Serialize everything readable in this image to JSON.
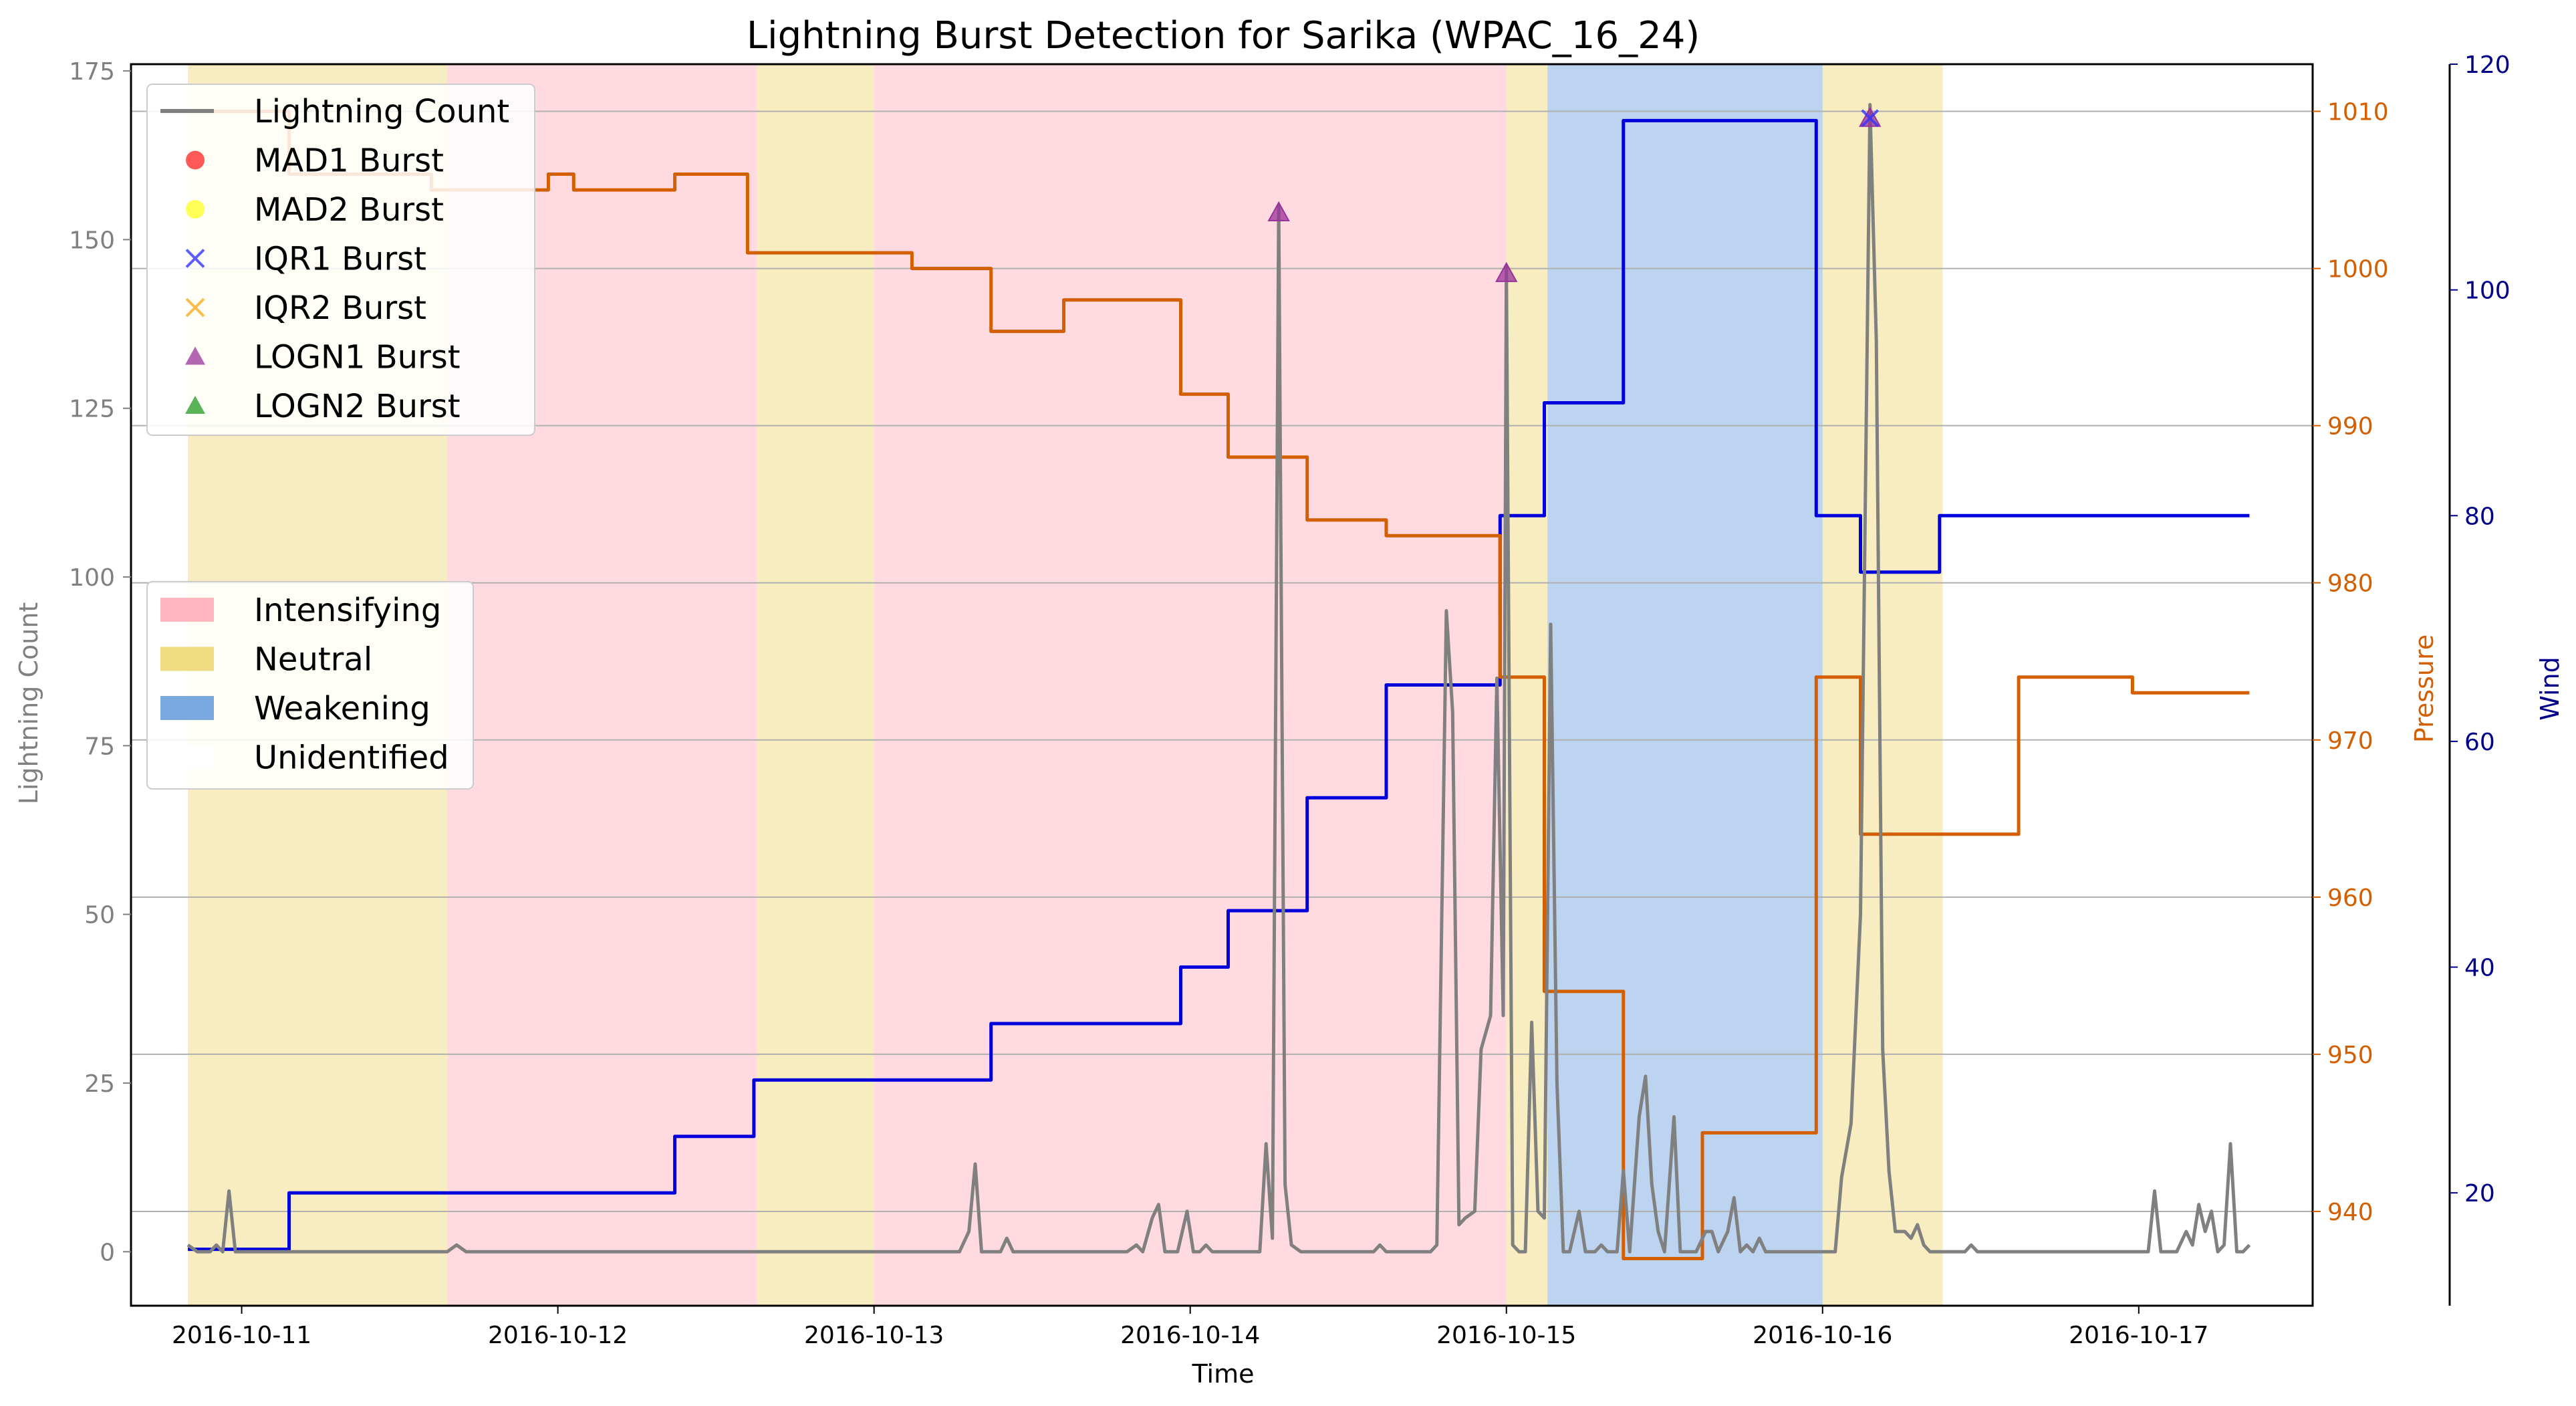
{
  "chart_data": {
    "type": "line",
    "title": "Lightning Burst Detection for Sarika (WPAC_16_24)",
    "xlabel": "Time",
    "ylabel_left": "Lightning Count",
    "ylabel_pressure": "Pressure",
    "ylabel_wind": "Wind",
    "x_ticks": [
      "2016-10-11",
      "2016-10-12",
      "2016-10-13",
      "2016-10-14",
      "2016-10-15",
      "2016-10-16",
      "2016-10-17"
    ],
    "y_left_ticks": [
      "0",
      "25",
      "50",
      "75",
      "100",
      "125",
      "150",
      "175"
    ],
    "y_pressure_ticks": [
      "940",
      "950",
      "960",
      "970",
      "980",
      "990",
      "1000",
      "1010"
    ],
    "y_wind_ticks": [
      "20",
      "40",
      "60",
      "80",
      "100",
      "120"
    ],
    "x_range_days": [
      10.65,
      17.55
    ],
    "x_origin_date": "2016-10-10",
    "y_left_range": [
      -8,
      176
    ],
    "y_pressure_range": [
      934,
      1013
    ],
    "y_wind_range": [
      10,
      120
    ],
    "grid": "horizontal",
    "colors": {
      "lightning": "#808080",
      "pressure": "#d35f00",
      "wind": "#0000dd",
      "intensifying": "#ffb6c1",
      "neutral": "#f0dc82",
      "weakening": "#7aa9df",
      "mad1": "#ff2222",
      "mad2": "#ffff22",
      "iqr1": "#3333ff",
      "iqr2": "#ffaa22",
      "logn1": "#993399",
      "logn2": "#229922"
    },
    "phases": [
      {
        "label": "Neutral",
        "start": 10.83,
        "end": 11.65
      },
      {
        "label": "Intensifying",
        "start": 11.65,
        "end": 12.63
      },
      {
        "label": "Neutral",
        "start": 12.63,
        "end": 13.0
      },
      {
        "label": "Intensifying",
        "start": 13.0,
        "end": 15.0
      },
      {
        "label": "Neutral",
        "start": 15.0,
        "end": 15.13
      },
      {
        "label": "Weakening",
        "start": 15.13,
        "end": 16.0
      },
      {
        "label": "Neutral",
        "start": 16.0,
        "end": 16.38
      }
    ],
    "series": [
      {
        "name": "Lightning Count",
        "axis": "left",
        "points": [
          [
            10.83,
            1
          ],
          [
            10.86,
            0
          ],
          [
            10.9,
            0
          ],
          [
            10.92,
            1
          ],
          [
            10.94,
            0
          ],
          [
            10.96,
            9
          ],
          [
            10.98,
            0
          ],
          [
            11.2,
            0
          ],
          [
            11.5,
            0
          ],
          [
            11.65,
            0
          ],
          [
            11.68,
            1
          ],
          [
            11.71,
            0
          ],
          [
            12.0,
            0
          ],
          [
            12.5,
            0
          ],
          [
            13.0,
            0
          ],
          [
            13.2,
            0
          ],
          [
            13.27,
            0
          ],
          [
            13.3,
            3
          ],
          [
            13.32,
            13
          ],
          [
            13.34,
            0
          ],
          [
            13.4,
            0
          ],
          [
            13.42,
            2
          ],
          [
            13.44,
            0
          ],
          [
            13.6,
            0
          ],
          [
            13.8,
            0
          ],
          [
            13.83,
            1
          ],
          [
            13.85,
            0
          ],
          [
            13.88,
            5
          ],
          [
            13.9,
            7
          ],
          [
            13.92,
            0
          ],
          [
            13.96,
            0
          ],
          [
            13.99,
            6
          ],
          [
            14.01,
            0
          ],
          [
            14.03,
            0
          ],
          [
            14.05,
            1
          ],
          [
            14.07,
            0
          ],
          [
            14.15,
            0
          ],
          [
            14.22,
            0
          ],
          [
            14.24,
            16
          ],
          [
            14.26,
            2
          ],
          [
            14.28,
            155
          ],
          [
            14.3,
            10
          ],
          [
            14.32,
            1
          ],
          [
            14.35,
            0
          ],
          [
            14.5,
            0
          ],
          [
            14.58,
            0
          ],
          [
            14.6,
            1
          ],
          [
            14.62,
            0
          ],
          [
            14.72,
            0
          ],
          [
            14.76,
            0
          ],
          [
            14.78,
            1
          ],
          [
            14.81,
            95
          ],
          [
            14.83,
            80
          ],
          [
            14.85,
            4
          ],
          [
            14.87,
            5
          ],
          [
            14.9,
            6
          ],
          [
            14.92,
            30
          ],
          [
            14.95,
            35
          ],
          [
            14.97,
            85
          ],
          [
            14.99,
            35
          ],
          [
            15.0,
            146
          ],
          [
            15.02,
            1
          ],
          [
            15.04,
            0
          ],
          [
            15.06,
            0
          ],
          [
            15.08,
            34
          ],
          [
            15.1,
            6
          ],
          [
            15.12,
            5
          ],
          [
            15.14,
            93
          ],
          [
            15.16,
            25
          ],
          [
            15.18,
            0
          ],
          [
            15.2,
            0
          ],
          [
            15.23,
            6
          ],
          [
            15.25,
            0
          ],
          [
            15.28,
            0
          ],
          [
            15.3,
            1
          ],
          [
            15.32,
            0
          ],
          [
            15.35,
            0
          ],
          [
            15.37,
            12
          ],
          [
            15.39,
            0
          ],
          [
            15.42,
            20
          ],
          [
            15.44,
            26
          ],
          [
            15.46,
            10
          ],
          [
            15.48,
            3
          ],
          [
            15.5,
            0
          ],
          [
            15.53,
            20
          ],
          [
            15.55,
            0
          ],
          [
            15.6,
            0
          ],
          [
            15.63,
            3
          ],
          [
            15.65,
            3
          ],
          [
            15.67,
            0
          ],
          [
            15.7,
            3
          ],
          [
            15.72,
            8
          ],
          [
            15.74,
            0
          ],
          [
            15.76,
            1
          ],
          [
            15.78,
            0
          ],
          [
            15.8,
            2
          ],
          [
            15.82,
            0
          ],
          [
            15.9,
            0
          ],
          [
            16.0,
            0
          ],
          [
            16.04,
            0
          ],
          [
            16.06,
            11
          ],
          [
            16.09,
            19
          ],
          [
            16.12,
            50
          ],
          [
            16.15,
            170
          ],
          [
            16.17,
            135
          ],
          [
            16.19,
            30
          ],
          [
            16.21,
            12
          ],
          [
            16.23,
            3
          ],
          [
            16.26,
            3
          ],
          [
            16.28,
            2
          ],
          [
            16.3,
            4
          ],
          [
            16.32,
            1
          ],
          [
            16.34,
            0
          ],
          [
            16.38,
            0
          ],
          [
            16.45,
            0
          ],
          [
            16.47,
            1
          ],
          [
            16.49,
            0
          ],
          [
            16.6,
            0
          ],
          [
            16.8,
            0
          ],
          [
            17.0,
            0
          ],
          [
            17.03,
            0
          ],
          [
            17.05,
            9
          ],
          [
            17.07,
            0
          ],
          [
            17.12,
            0
          ],
          [
            17.15,
            3
          ],
          [
            17.17,
            1
          ],
          [
            17.19,
            7
          ],
          [
            17.21,
            3
          ],
          [
            17.23,
            6
          ],
          [
            17.25,
            0
          ],
          [
            17.27,
            1
          ],
          [
            17.29,
            16
          ],
          [
            17.31,
            0
          ],
          [
            17.33,
            0
          ],
          [
            17.35,
            1
          ]
        ]
      },
      {
        "name": "Pressure",
        "axis": "pressure",
        "points": [
          [
            10.83,
            1010
          ],
          [
            11.15,
            1010
          ],
          [
            11.15,
            1006
          ],
          [
            11.6,
            1006
          ],
          [
            11.6,
            1005
          ],
          [
            11.97,
            1005
          ],
          [
            11.97,
            1006
          ],
          [
            12.05,
            1006
          ],
          [
            12.05,
            1005
          ],
          [
            12.37,
            1005
          ],
          [
            12.37,
            1006
          ],
          [
            12.6,
            1006
          ],
          [
            12.6,
            1001
          ],
          [
            13.12,
            1001
          ],
          [
            13.12,
            1000
          ],
          [
            13.37,
            1000
          ],
          [
            13.37,
            996
          ],
          [
            13.6,
            996
          ],
          [
            13.6,
            998
          ],
          [
            13.97,
            998
          ],
          [
            13.97,
            992
          ],
          [
            14.12,
            992
          ],
          [
            14.12,
            988
          ],
          [
            14.37,
            988
          ],
          [
            14.37,
            984
          ],
          [
            14.62,
            984
          ],
          [
            14.62,
            983
          ],
          [
            14.98,
            983
          ],
          [
            14.98,
            974
          ],
          [
            15.12,
            974
          ],
          [
            15.12,
            954
          ],
          [
            15.37,
            954
          ],
          [
            15.37,
            937
          ],
          [
            15.62,
            937
          ],
          [
            15.62,
            945
          ],
          [
            15.98,
            945
          ],
          [
            15.98,
            974
          ],
          [
            16.12,
            974
          ],
          [
            16.12,
            964
          ],
          [
            16.62,
            964
          ],
          [
            16.62,
            974
          ],
          [
            16.98,
            974
          ],
          [
            16.98,
            973
          ],
          [
            17.35,
            973
          ]
        ]
      },
      {
        "name": "Wind",
        "axis": "wind",
        "points": [
          [
            10.83,
            15
          ],
          [
            11.15,
            15
          ],
          [
            11.15,
            20
          ],
          [
            12.37,
            20
          ],
          [
            12.37,
            25
          ],
          [
            12.62,
            25
          ],
          [
            12.62,
            30
          ],
          [
            13.37,
            30
          ],
          [
            13.37,
            35
          ],
          [
            13.97,
            35
          ],
          [
            13.97,
            40
          ],
          [
            14.12,
            40
          ],
          [
            14.12,
            45
          ],
          [
            14.37,
            45
          ],
          [
            14.37,
            55
          ],
          [
            14.62,
            55
          ],
          [
            14.62,
            65
          ],
          [
            14.98,
            65
          ],
          [
            14.98,
            80
          ],
          [
            15.12,
            80
          ],
          [
            15.12,
            90
          ],
          [
            15.37,
            90
          ],
          [
            15.37,
            115
          ],
          [
            15.98,
            115
          ],
          [
            15.98,
            80
          ],
          [
            16.12,
            80
          ],
          [
            16.12,
            75
          ],
          [
            16.37,
            75
          ],
          [
            16.37,
            80
          ],
          [
            17.35,
            80
          ]
        ]
      }
    ],
    "burst_markers": [
      {
        "type": "LOGN1",
        "x": 14.28,
        "y": 154
      },
      {
        "type": "LOGN1",
        "x": 15.0,
        "y": 145
      },
      {
        "type": "LOGN1",
        "x": 16.15,
        "y": 168
      },
      {
        "type": "IQR1",
        "x": 16.15,
        "y": 168
      }
    ],
    "legend_series": [
      {
        "label": "Lightning Count",
        "kind": "line",
        "color": "#808080"
      },
      {
        "label": "MAD1 Burst",
        "kind": "circle",
        "color": "#ff2222"
      },
      {
        "label": "MAD2 Burst",
        "kind": "circle",
        "color": "#ffff22"
      },
      {
        "label": "IQR1 Burst",
        "kind": "x",
        "color": "#3333ff"
      },
      {
        "label": "IQR2 Burst",
        "kind": "x",
        "color": "#ffaa22"
      },
      {
        "label": "LOGN1 Burst",
        "kind": "triangle",
        "color": "#993399"
      },
      {
        "label": "LOGN2 Burst",
        "kind": "triangle",
        "color": "#229922"
      }
    ],
    "legend_phases": [
      {
        "label": "Intensifying",
        "color": "#ffb6c1"
      },
      {
        "label": "Neutral",
        "color": "#f0dc82"
      },
      {
        "label": "Weakening",
        "color": "#7aa9df"
      },
      {
        "label": "Unidentified",
        "color": "#ffffff"
      }
    ]
  }
}
